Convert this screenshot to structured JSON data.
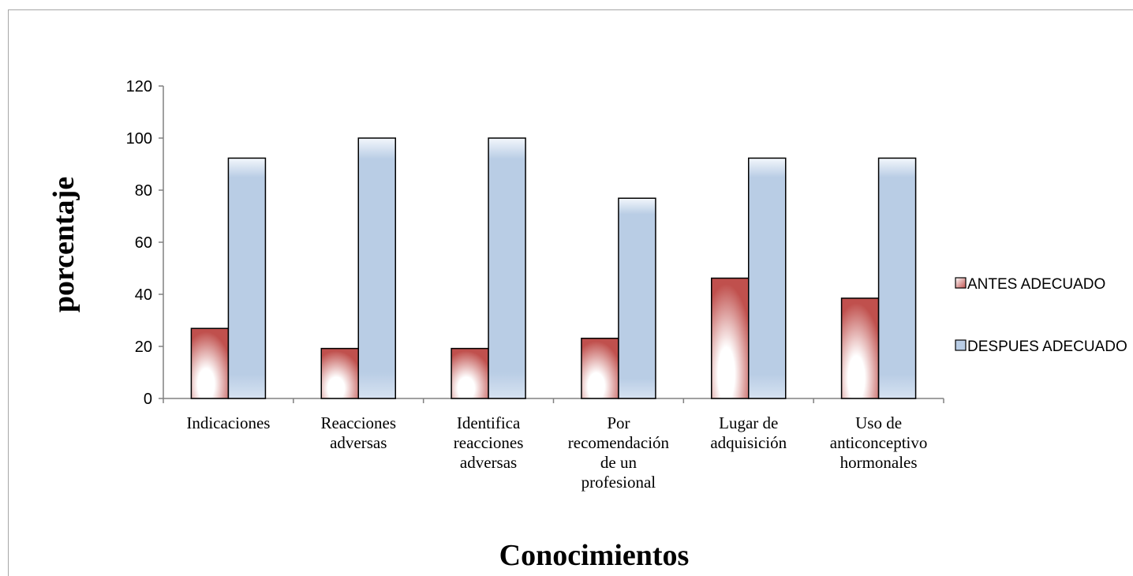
{
  "chart_data": {
    "type": "bar",
    "categories": [
      [
        "Indicaciones"
      ],
      [
        "Reacciones",
        "adversas"
      ],
      [
        "Identifica",
        "reacciones",
        "adversas"
      ],
      [
        "Por",
        "recomendación",
        "de un",
        "profesional"
      ],
      [
        "Lugar de",
        "adquisición"
      ],
      [
        "Uso de",
        "anticonceptivo",
        "hormonales"
      ]
    ],
    "series": [
      {
        "name": "ANTES ADECUADO",
        "values": [
          26.9,
          19.2,
          19.2,
          23.1,
          46.2,
          38.5
        ],
        "color": "#c0504d"
      },
      {
        "name": "DESPUES ADECUADO",
        "values": [
          92.3,
          100,
          100,
          76.9,
          92.3,
          92.3
        ],
        "color": "#b9cde5"
      }
    ],
    "xlabel": "Conocimientos",
    "ylabel": "porcentaje",
    "ylim": [
      0,
      120
    ],
    "yticks": [
      0,
      20,
      40,
      60,
      80,
      100,
      120
    ],
    "grid": false,
    "legend_position": "right"
  }
}
